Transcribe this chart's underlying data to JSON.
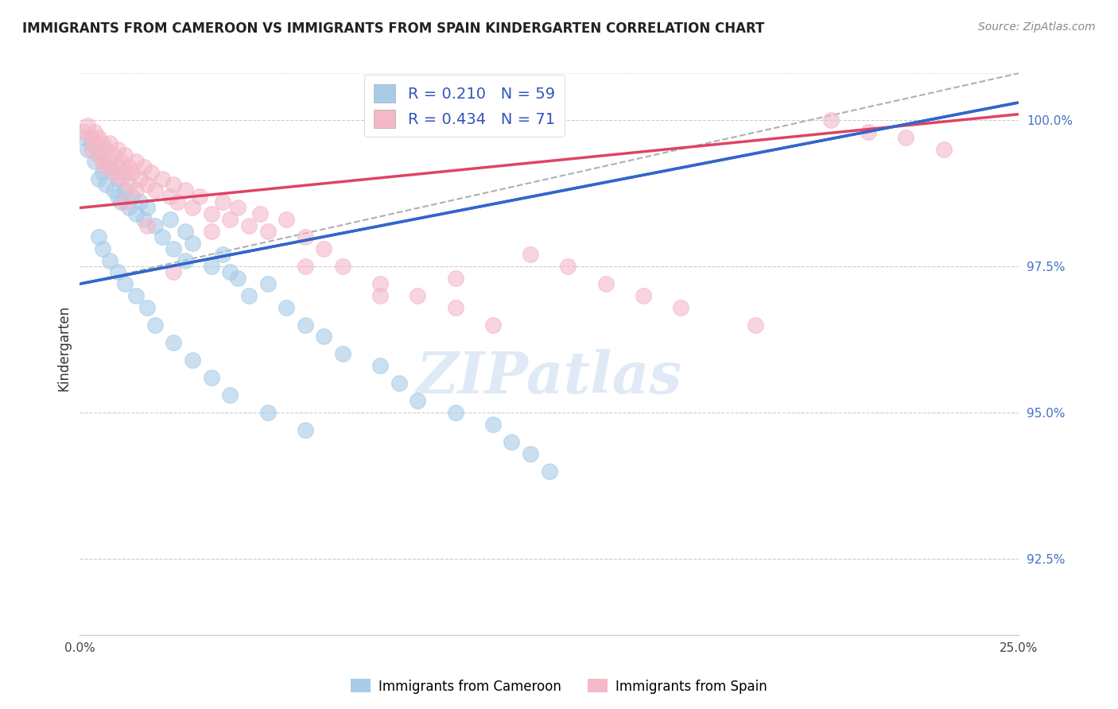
{
  "title": "IMMIGRANTS FROM CAMEROON VS IMMIGRANTS FROM SPAIN KINDERGARTEN CORRELATION CHART",
  "source": "Source: ZipAtlas.com",
  "ylabel": "Kindergarten",
  "xmin": 0.0,
  "xmax": 0.25,
  "ymin": 91.2,
  "ymax": 101.0,
  "r_cameroon": 0.21,
  "n_cameroon": 59,
  "r_spain": 0.434,
  "n_spain": 71,
  "legend_label_cameroon": "Immigrants from Cameroon",
  "legend_label_spain": "Immigrants from Spain",
  "color_cameroon": "#a8cce8",
  "color_spain": "#f4b8c8",
  "trendline_color_cameroon": "#3366cc",
  "trendline_color_spain": "#dd4466",
  "trendline_dash_color": "#b0b0b0",
  "background_color": "#ffffff",
  "ytick_vals": [
    92.5,
    95.0,
    97.5,
    100.0
  ],
  "cam_trend_x0": 0.0,
  "cam_trend_y0": 97.2,
  "cam_trend_x1": 0.25,
  "cam_trend_y1": 100.3,
  "spa_trend_x0": 0.0,
  "spa_trend_y0": 98.5,
  "spa_trend_x1": 0.25,
  "spa_trend_y1": 100.1,
  "dash_trend_x0": 0.0,
  "dash_trend_y0": 97.2,
  "dash_trend_x1": 0.25,
  "dash_trend_y1": 100.8,
  "cameroon_points": [
    [
      0.001,
      99.7
    ],
    [
      0.002,
      99.5
    ],
    [
      0.003,
      99.6
    ],
    [
      0.004,
      99.3
    ],
    [
      0.005,
      99.4
    ],
    [
      0.005,
      99.0
    ],
    [
      0.006,
      99.1
    ],
    [
      0.007,
      98.9
    ],
    [
      0.008,
      99.2
    ],
    [
      0.009,
      98.8
    ],
    [
      0.01,
      99.0
    ],
    [
      0.01,
      98.7
    ],
    [
      0.011,
      98.6
    ],
    [
      0.012,
      98.8
    ],
    [
      0.013,
      98.5
    ],
    [
      0.014,
      98.7
    ],
    [
      0.015,
      98.4
    ],
    [
      0.016,
      98.6
    ],
    [
      0.017,
      98.3
    ],
    [
      0.018,
      98.5
    ],
    [
      0.02,
      98.2
    ],
    [
      0.022,
      98.0
    ],
    [
      0.024,
      98.3
    ],
    [
      0.025,
      97.8
    ],
    [
      0.028,
      98.1
    ],
    [
      0.028,
      97.6
    ],
    [
      0.03,
      97.9
    ],
    [
      0.035,
      97.5
    ],
    [
      0.038,
      97.7
    ],
    [
      0.04,
      97.4
    ],
    [
      0.042,
      97.3
    ],
    [
      0.045,
      97.0
    ],
    [
      0.05,
      97.2
    ],
    [
      0.055,
      96.8
    ],
    [
      0.06,
      96.5
    ],
    [
      0.065,
      96.3
    ],
    [
      0.07,
      96.0
    ],
    [
      0.08,
      95.8
    ],
    [
      0.085,
      95.5
    ],
    [
      0.09,
      95.2
    ],
    [
      0.1,
      95.0
    ],
    [
      0.11,
      94.8
    ],
    [
      0.115,
      94.5
    ],
    [
      0.12,
      94.3
    ],
    [
      0.125,
      94.0
    ],
    [
      0.005,
      98.0
    ],
    [
      0.006,
      97.8
    ],
    [
      0.008,
      97.6
    ],
    [
      0.01,
      97.4
    ],
    [
      0.012,
      97.2
    ],
    [
      0.015,
      97.0
    ],
    [
      0.018,
      96.8
    ],
    [
      0.02,
      96.5
    ],
    [
      0.025,
      96.2
    ],
    [
      0.03,
      95.9
    ],
    [
      0.035,
      95.6
    ],
    [
      0.04,
      95.3
    ],
    [
      0.05,
      95.0
    ],
    [
      0.06,
      94.7
    ]
  ],
  "spain_points": [
    [
      0.001,
      99.8
    ],
    [
      0.002,
      99.9
    ],
    [
      0.003,
      99.7
    ],
    [
      0.003,
      99.5
    ],
    [
      0.004,
      99.8
    ],
    [
      0.004,
      99.6
    ],
    [
      0.005,
      99.7
    ],
    [
      0.005,
      99.4
    ],
    [
      0.006,
      99.6
    ],
    [
      0.006,
      99.3
    ],
    [
      0.007,
      99.5
    ],
    [
      0.007,
      99.2
    ],
    [
      0.008,
      99.6
    ],
    [
      0.008,
      99.3
    ],
    [
      0.009,
      99.4
    ],
    [
      0.009,
      99.1
    ],
    [
      0.01,
      99.5
    ],
    [
      0.01,
      99.2
    ],
    [
      0.011,
      99.3
    ],
    [
      0.011,
      99.0
    ],
    [
      0.012,
      99.4
    ],
    [
      0.012,
      99.1
    ],
    [
      0.013,
      99.2
    ],
    [
      0.013,
      98.9
    ],
    [
      0.014,
      99.1
    ],
    [
      0.015,
      99.3
    ],
    [
      0.015,
      98.8
    ],
    [
      0.016,
      99.0
    ],
    [
      0.017,
      99.2
    ],
    [
      0.018,
      98.9
    ],
    [
      0.019,
      99.1
    ],
    [
      0.02,
      98.8
    ],
    [
      0.022,
      99.0
    ],
    [
      0.024,
      98.7
    ],
    [
      0.025,
      98.9
    ],
    [
      0.026,
      98.6
    ],
    [
      0.028,
      98.8
    ],
    [
      0.03,
      98.5
    ],
    [
      0.032,
      98.7
    ],
    [
      0.035,
      98.4
    ],
    [
      0.038,
      98.6
    ],
    [
      0.04,
      98.3
    ],
    [
      0.042,
      98.5
    ],
    [
      0.045,
      98.2
    ],
    [
      0.048,
      98.4
    ],
    [
      0.05,
      98.1
    ],
    [
      0.055,
      98.3
    ],
    [
      0.06,
      98.0
    ],
    [
      0.065,
      97.8
    ],
    [
      0.07,
      97.5
    ],
    [
      0.08,
      97.2
    ],
    [
      0.09,
      97.0
    ],
    [
      0.1,
      96.8
    ],
    [
      0.11,
      96.5
    ],
    [
      0.12,
      97.7
    ],
    [
      0.13,
      97.5
    ],
    [
      0.14,
      97.2
    ],
    [
      0.15,
      97.0
    ],
    [
      0.16,
      96.8
    ],
    [
      0.18,
      96.5
    ],
    [
      0.2,
      100.0
    ],
    [
      0.21,
      99.8
    ],
    [
      0.22,
      99.7
    ],
    [
      0.23,
      99.5
    ],
    [
      0.06,
      97.5
    ],
    [
      0.08,
      97.0
    ],
    [
      0.1,
      97.3
    ],
    [
      0.035,
      98.1
    ],
    [
      0.025,
      97.4
    ],
    [
      0.018,
      98.2
    ],
    [
      0.012,
      98.6
    ]
  ]
}
